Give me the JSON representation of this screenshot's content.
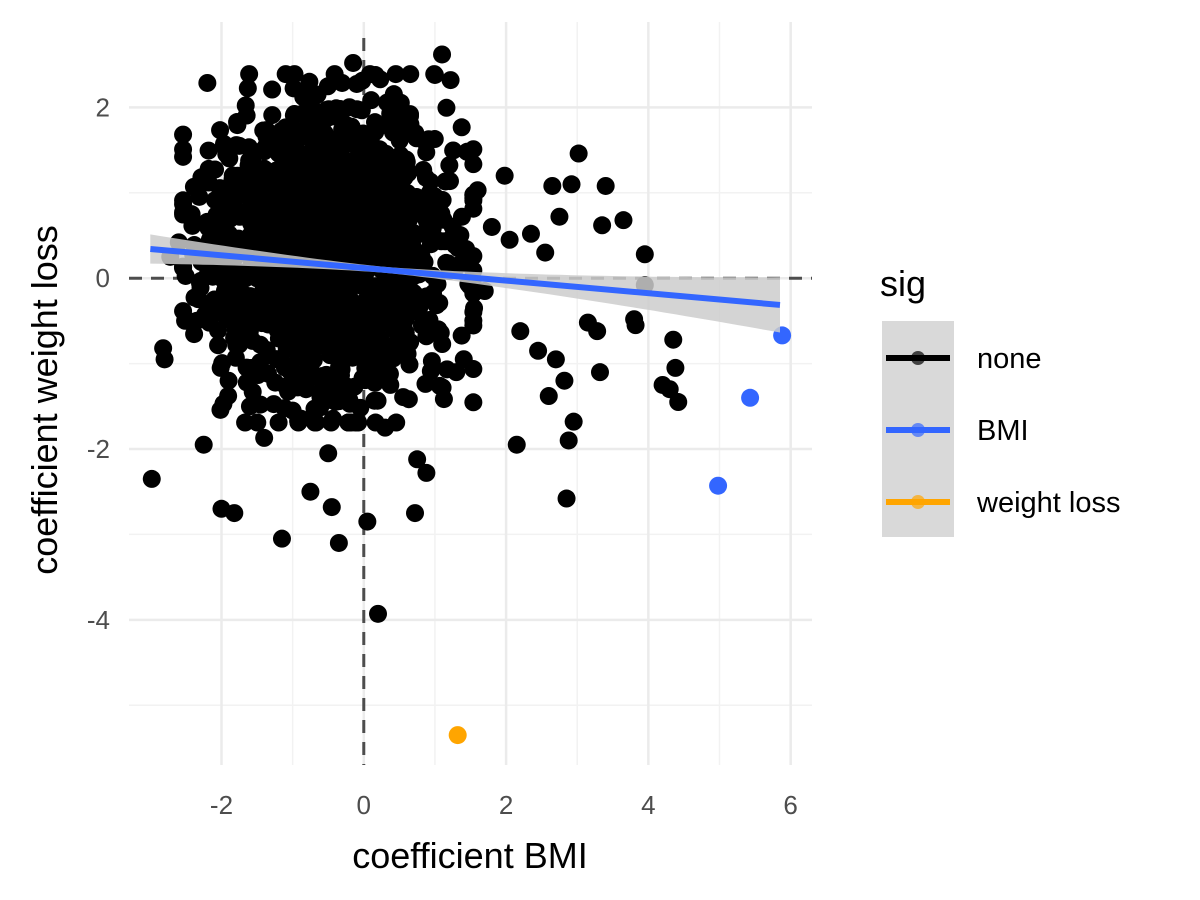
{
  "chart_data": {
    "type": "scatter",
    "xlabel": "coefficient BMI",
    "ylabel": "coefficient weight loss",
    "xlim": [
      -3.3,
      6.3
    ],
    "ylim": [
      -5.7,
      3.0
    ],
    "x_ticks": [
      -2,
      0,
      2,
      4,
      6
    ],
    "y_ticks": [
      2,
      0,
      -2,
      -4
    ],
    "x_tick_labels": [
      "-2",
      "0",
      "2",
      "4",
      "6"
    ],
    "y_tick_labels": [
      "2",
      "0",
      "-2",
      "-4"
    ],
    "grid": true,
    "reference_lines": {
      "vertical_x": 0,
      "horizontal_y": 0,
      "style": "dashed"
    },
    "regression": {
      "x_range": [
        -3.0,
        5.85
      ],
      "slope": -0.074,
      "intercept": 0.12,
      "color": "#3366FF",
      "band_color": "#cccccc"
    },
    "legend": {
      "title": "sig",
      "position": "right",
      "entries": [
        {
          "label": "none",
          "color": "#000000"
        },
        {
          "label": "BMI",
          "color": "#3366FF"
        },
        {
          "label": "weight loss",
          "color": "#FFA500"
        }
      ]
    },
    "series": [
      {
        "name": "none",
        "color": "#000000",
        "generated_cloud": {
          "count": 1500,
          "center": [
            -0.5,
            0.35
          ],
          "sd": [
            0.85,
            0.85
          ],
          "seed": 20240613
        },
        "points": [
          [
            -2.98,
            -2.35
          ],
          [
            -2.8,
            -0.95
          ],
          [
            -2.82,
            -0.82
          ],
          [
            -2.72,
            0.25
          ],
          [
            -2.6,
            0.42
          ],
          [
            -2.42,
            0.75
          ],
          [
            -2.35,
            -0.5
          ],
          [
            -2.25,
            -1.95
          ],
          [
            -2.18,
            1.28
          ],
          [
            -2.0,
            -2.7
          ],
          [
            -1.82,
            -2.75
          ],
          [
            -1.75,
            1.55
          ],
          [
            -1.6,
            -1.5
          ],
          [
            -1.4,
            -1.87
          ],
          [
            -1.15,
            -3.05
          ],
          [
            -0.85,
            2.12
          ],
          [
            -0.75,
            -2.5
          ],
          [
            -0.65,
            2.15
          ],
          [
            -0.45,
            -2.68
          ],
          [
            -0.35,
            -3.1
          ],
          [
            -0.15,
            2.52
          ],
          [
            0.05,
            -2.85
          ],
          [
            0.2,
            -3.93
          ],
          [
            0.42,
            2.14
          ],
          [
            0.65,
            1.9
          ],
          [
            0.72,
            -2.75
          ],
          [
            0.75,
            -2.12
          ],
          [
            0.88,
            -2.28
          ],
          [
            1.0,
            2.38
          ],
          [
            1.1,
            2.62
          ],
          [
            1.22,
            2.32
          ],
          [
            1.45,
            1.48
          ],
          [
            1.6,
            1.03
          ],
          [
            1.8,
            0.6
          ],
          [
            1.98,
            1.2
          ],
          [
            2.05,
            0.45
          ],
          [
            2.15,
            -1.95
          ],
          [
            2.35,
            0.52
          ],
          [
            2.55,
            0.3
          ],
          [
            2.6,
            -1.38
          ],
          [
            2.65,
            1.08
          ],
          [
            2.75,
            0.72
          ],
          [
            2.82,
            -1.2
          ],
          [
            2.88,
            -1.9
          ],
          [
            2.85,
            -2.58
          ],
          [
            2.95,
            -1.68
          ],
          [
            2.92,
            1.1
          ],
          [
            3.02,
            1.46
          ],
          [
            3.15,
            -0.52
          ],
          [
            3.28,
            -0.62
          ],
          [
            3.32,
            -1.1
          ],
          [
            3.35,
            0.62
          ],
          [
            3.4,
            1.08
          ],
          [
            3.65,
            0.68
          ],
          [
            3.8,
            -0.48
          ],
          [
            3.82,
            -0.55
          ],
          [
            3.95,
            0.28
          ],
          [
            3.95,
            -0.08
          ],
          [
            4.2,
            -1.25
          ],
          [
            4.3,
            -1.3
          ],
          [
            4.35,
            -0.72
          ],
          [
            4.38,
            -1.05
          ],
          [
            4.42,
            -1.45
          ],
          [
            1.38,
            0.72
          ],
          [
            1.55,
            -0.35
          ],
          [
            1.7,
            -0.15
          ],
          [
            2.2,
            -0.62
          ],
          [
            2.45,
            -0.85
          ],
          [
            2.7,
            -0.95
          ],
          [
            1.3,
            -1.1
          ],
          [
            0.3,
            -1.75
          ],
          [
            -0.5,
            -2.05
          ],
          [
            -1.0,
            -1.55
          ],
          [
            -1.9,
            -1.2
          ],
          [
            -2.1,
            -0.25
          ]
        ]
      },
      {
        "name": "BMI",
        "color": "#3366FF",
        "points": [
          [
            5.88,
            -0.67
          ],
          [
            5.43,
            -1.4
          ],
          [
            4.98,
            -2.43
          ]
        ]
      },
      {
        "name": "weight loss",
        "color": "#FFA500",
        "points": [
          [
            1.32,
            -5.35
          ]
        ]
      }
    ]
  }
}
